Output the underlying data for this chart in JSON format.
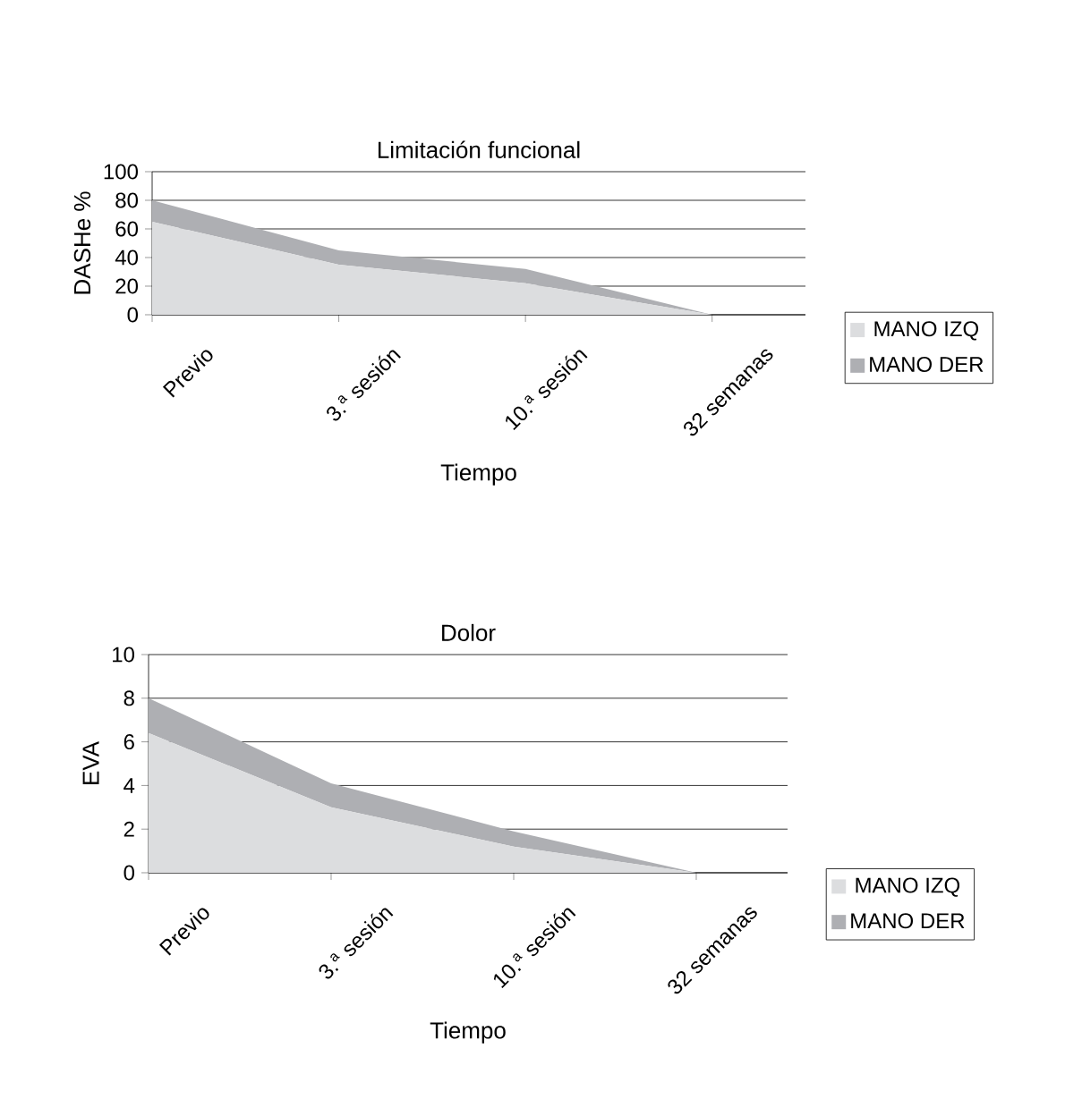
{
  "chart_data": [
    {
      "type": "area",
      "title": "Limitación funcional",
      "xlabel": "Tiempo",
      "ylabel": "DASHe %",
      "stacked": true,
      "categories": [
        "Previo",
        "3.$^{a}$ sesión",
        "10.$^{a}$ sesión",
        "32 semanas"
      ],
      "series": [
        {
          "name": "MANO IZQ",
          "color": "#dcdddf",
          "values": [
            65,
            35,
            22,
            0
          ]
        },
        {
          "name": "MANO DER",
          "color": "#aeafb3",
          "values": [
            15,
            10,
            10,
            0
          ]
        }
      ],
      "ylim": [
        0,
        100
      ],
      "yticks": [
        0,
        20,
        40,
        60,
        80,
        100
      ],
      "grid": "y",
      "legend": "right"
    },
    {
      "type": "area",
      "title": "Dolor",
      "xlabel": "Tiempo",
      "ylabel": "EVA",
      "stacked": true,
      "categories": [
        "Previo",
        "3.$^{a}$ sesión",
        "10.$^{a}$ sesión",
        "32 semanas"
      ],
      "series": [
        {
          "name": "MANO IZQ",
          "color": "#dcdddf",
          "values": [
            6.4,
            3,
            1.2,
            0
          ]
        },
        {
          "name": "MANO DER",
          "color": "#aeafb3",
          "values": [
            1.6,
            1.1,
            0.7,
            0
          ]
        }
      ],
      "ylim": [
        0,
        10
      ],
      "yticks": [
        0,
        2,
        4,
        6,
        8,
        10
      ],
      "grid": "y",
      "legend": "right"
    }
  ]
}
